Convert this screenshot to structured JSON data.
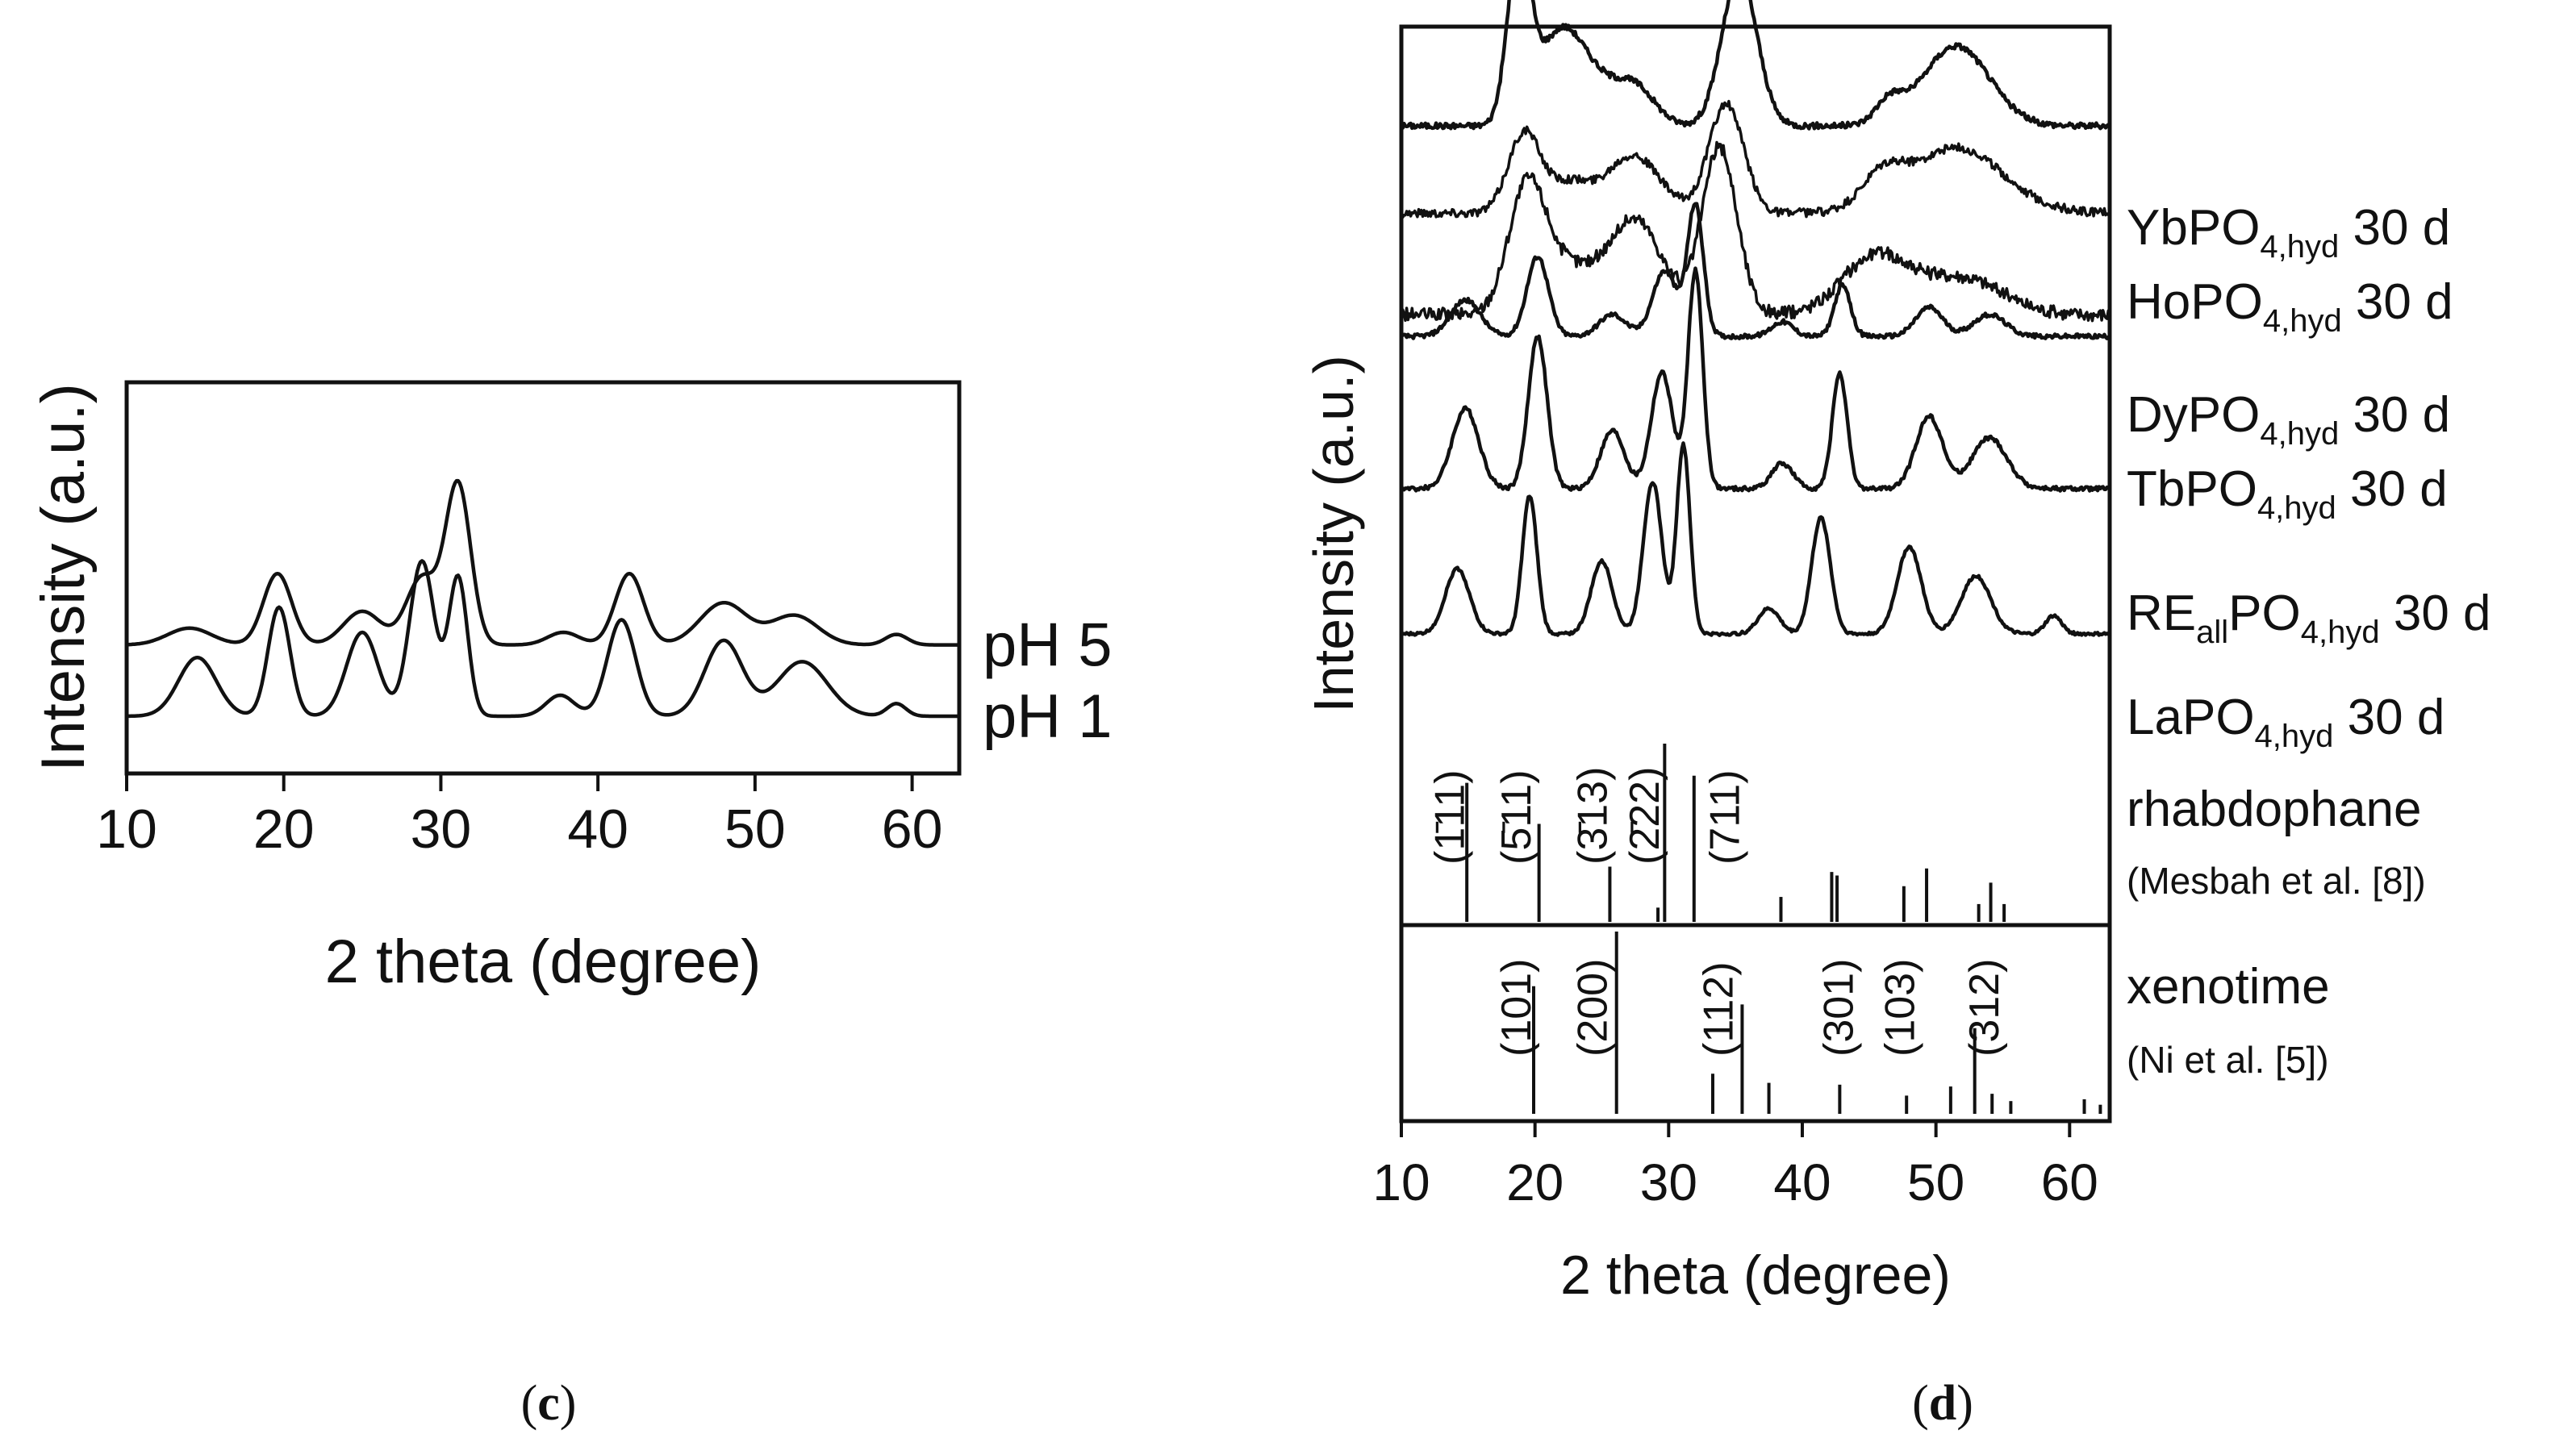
{
  "figure": {
    "panel_c_label": "(c)",
    "panel_d_label": "(d)",
    "panel_c_label_parts": [
      "(",
      "c",
      ")"
    ],
    "panel_d_label_parts": [
      "(",
      "d",
      ")"
    ]
  },
  "colors": {
    "line": "#111111",
    "background": "#ffffff"
  },
  "chart_data": [
    {
      "id": "panel-c",
      "type": "line",
      "xlabel": "2 theta (degree)",
      "ylabel": "Intensity (a.u.)",
      "xlim": [
        10,
        63
      ],
      "xticks": [
        10,
        20,
        30,
        40,
        50,
        60
      ],
      "yticks": [],
      "series": [
        {
          "name": "pH 5",
          "label": "pH 5",
          "baseline": 0.17,
          "peaks": [
            [
              14,
              0.04,
              1.4
            ],
            [
              19.6,
              0.17,
              0.9
            ],
            [
              25,
              0.08,
              1.2
            ],
            [
              28.8,
              0.16,
              1.0
            ],
            [
              31.1,
              0.38,
              0.8
            ],
            [
              37.8,
              0.03,
              1.0
            ],
            [
              42,
              0.17,
              0.9
            ],
            [
              48,
              0.1,
              1.5
            ],
            [
              52.5,
              0.07,
              1.5
            ],
            [
              59,
              0.025,
              0.7
            ]
          ]
        },
        {
          "name": "pH 1",
          "label": "pH 1",
          "baseline": 0.0,
          "peaks": [
            [
              14.5,
              0.14,
              1.2
            ],
            [
              19.7,
              0.26,
              0.7
            ],
            [
              25,
              0.2,
              1.0
            ],
            [
              28.8,
              0.37,
              0.8
            ],
            [
              31.1,
              0.33,
              0.6
            ],
            [
              37.6,
              0.05,
              0.9
            ],
            [
              41.5,
              0.23,
              0.9
            ],
            [
              48,
              0.18,
              1.2
            ],
            [
              53,
              0.13,
              1.6
            ],
            [
              59,
              0.03,
              0.6
            ]
          ]
        }
      ]
    },
    {
      "id": "panel-d",
      "type": "line",
      "xlabel": "2 theta (degree)",
      "ylabel": "Intensity (a.u.)",
      "xlim": [
        10,
        63
      ],
      "xticks": [
        10,
        20,
        30,
        40,
        50,
        60
      ],
      "yticks": [],
      "series": [
        {
          "name": "YbPO4,hyd 30 d",
          "label": {
            "pre": "YbPO",
            "sub": "4,hyd",
            "post": " 30 d"
          },
          "baseline": 0.86,
          "noise": 0.004,
          "peaks": [
            [
              18.8,
              0.24,
              0.85
            ],
            [
              21.5,
              0.08,
              1.5
            ],
            [
              23.5,
              0.08,
              2.0
            ],
            [
              27.5,
              0.05,
              1.5
            ],
            [
              35.3,
              0.21,
              1.3
            ],
            [
              46.5,
              0.03,
              1.0
            ],
            [
              51.5,
              0.11,
              2.5
            ]
          ]
        },
        {
          "name": "HoPO4,hyd 30 d",
          "label": {
            "pre": "HoPO",
            "sub": "4,hyd",
            "post": " 30 d"
          },
          "baseline": 0.74,
          "noise": 0.006,
          "peaks": [
            [
              19.2,
              0.11,
              1.2
            ],
            [
              22.5,
              0.04,
              1.5
            ],
            [
              27.3,
              0.08,
              2.0
            ],
            [
              34.3,
              0.15,
              1.3
            ],
            [
              46.0,
              0.04,
              1.5
            ],
            [
              51.5,
              0.09,
              3.5
            ]
          ]
        },
        {
          "name": "DyPO4,hyd 30 d",
          "label": {
            "pre": "DyPO",
            "sub": "4,hyd",
            "post": " 30 d"
          },
          "baseline": 0.6,
          "noise": 0.009,
          "peaks": [
            [
              19.4,
              0.17,
              1.4
            ],
            [
              22.5,
              0.06,
              2.0
            ],
            [
              27.5,
              0.13,
              2.0
            ],
            [
              33.8,
              0.23,
              1.3
            ],
            [
              45.5,
              0.08,
              2.5
            ],
            [
              52,
              0.05,
              3.0
            ]
          ]
        },
        {
          "name": "TbPO4,hyd 30 d",
          "label": {
            "pre": "TbPO",
            "sub": "4,hyd",
            "post": " 30 d"
          },
          "baseline": 0.57,
          "noise": 0.003,
          "peaks": [
            [
              14.8,
              0.05,
              1.1
            ],
            [
              20.2,
              0.11,
              0.8
            ],
            [
              25.8,
              0.03,
              1.0
            ],
            [
              29.7,
              0.09,
              0.9
            ],
            [
              32,
              0.18,
              0.6
            ],
            [
              38.5,
              0.02,
              0.8
            ],
            [
              43,
              0.07,
              0.6
            ],
            [
              49.5,
              0.04,
              1.0
            ],
            [
              54,
              0.03,
              1.2
            ]
          ]
        },
        {
          "name": "REallPO4,hyd 30 d",
          "label": {
            "pre": "RE",
            "sub1": "all",
            "mid": "PO",
            "sub": "4,hyd",
            "post": " 30 d"
          },
          "baseline": 0.36,
          "noise": 0.003,
          "peaks": [
            [
              14.8,
              0.11,
              1.0
            ],
            [
              20.2,
              0.21,
              0.7
            ],
            [
              25.8,
              0.08,
              0.9
            ],
            [
              29.5,
              0.16,
              0.8
            ],
            [
              32,
              0.3,
              0.55
            ],
            [
              38.5,
              0.035,
              0.8
            ],
            [
              42.8,
              0.16,
              0.55
            ],
            [
              49.5,
              0.1,
              1.0
            ],
            [
              54,
              0.07,
              1.3
            ]
          ]
        },
        {
          "name": "LaPO4,hyd 30 d",
          "label": {
            "pre": "LaPO",
            "sub": "4,hyd",
            "post": " 30 d"
          },
          "baseline": 0.16,
          "noise": 0.002,
          "peaks": [
            [
              14.2,
              0.09,
              0.9
            ],
            [
              19.6,
              0.19,
              0.55
            ],
            [
              25,
              0.1,
              0.8
            ],
            [
              28.8,
              0.21,
              0.7
            ],
            [
              31.1,
              0.26,
              0.5
            ],
            [
              37.5,
              0.035,
              0.8
            ],
            [
              41.4,
              0.16,
              0.7
            ],
            [
              48,
              0.12,
              0.9
            ],
            [
              53,
              0.08,
              1.1
            ],
            [
              58.8,
              0.025,
              0.6
            ]
          ]
        }
      ],
      "references": [
        {
          "name": "rhabdophane",
          "title": "rhabdophane",
          "citation": "(Mesbah et al. [8])",
          "sticks": [
            [
              14.9,
              0.78
            ],
            [
              20.3,
              0.55
            ],
            [
              25.6,
              0.31
            ],
            [
              29.2,
              0.08
            ],
            [
              29.7,
              1.0
            ],
            [
              31.9,
              0.82
            ],
            [
              38.4,
              0.14
            ],
            [
              42.2,
              0.28
            ],
            [
              42.6,
              0.26
            ],
            [
              47.6,
              0.2
            ],
            [
              49.3,
              0.3
            ],
            [
              53.2,
              0.1
            ],
            [
              54.1,
              0.22
            ],
            [
              55.1,
              0.1
            ]
          ],
          "hkl": [
            {
              "x": 13.7,
              "text": "(1̄11)"
            },
            {
              "x": 18.7,
              "text": "(5̄11)"
            },
            {
              "x": 24.4,
              "text": "(3̄13)"
            },
            {
              "x": 28.3,
              "text": "(2̄22)"
            },
            {
              "x": 34.3,
              "text": "(711)"
            }
          ]
        },
        {
          "name": "xenotime",
          "title": "xenotime",
          "citation": "(Ni et al. [5])",
          "sticks": [
            [
              19.9,
              0.7
            ],
            [
              26.1,
              1.0
            ],
            [
              33.3,
              0.22
            ],
            [
              35.5,
              0.6
            ],
            [
              37.5,
              0.17
            ],
            [
              42.8,
              0.16
            ],
            [
              47.8,
              0.1
            ],
            [
              51.1,
              0.15
            ],
            [
              52.9,
              0.47
            ],
            [
              54.2,
              0.11
            ],
            [
              55.6,
              0.07
            ],
            [
              61.1,
              0.08
            ],
            [
              62.3,
              0.05
            ]
          ],
          "hkl": [
            {
              "x": 18.7,
              "text": "(101)"
            },
            {
              "x": 24.4,
              "text": "(200)"
            },
            {
              "x": 33.8,
              "text": "(112)"
            },
            {
              "x": 42.8,
              "text": "(301)"
            },
            {
              "x": 47.4,
              "text": "(103)"
            },
            {
              "x": 53.7,
              "text": "(312)"
            }
          ]
        }
      ]
    }
  ]
}
